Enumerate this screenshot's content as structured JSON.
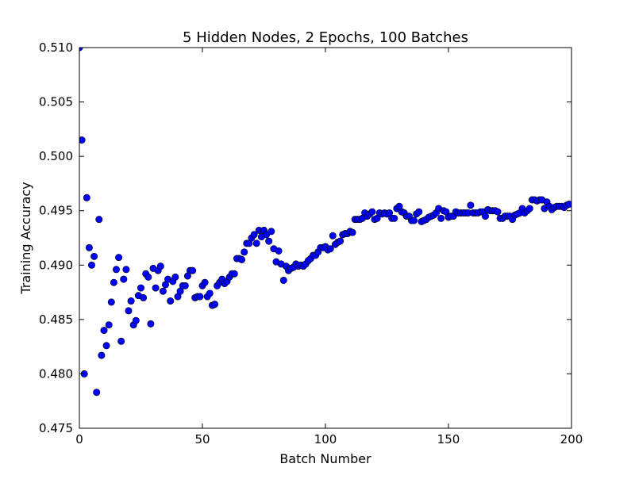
{
  "chart_data": {
    "type": "scatter",
    "title": "5 Hidden Nodes, 2 Epochs, 100 Batches",
    "xlabel": "Batch Number",
    "ylabel": "Training Accuracy",
    "xlim": [
      0,
      200
    ],
    "ylim": [
      0.475,
      0.51
    ],
    "x_ticks": [
      0,
      50,
      100,
      150,
      200
    ],
    "y_ticks": [
      0.475,
      0.48,
      0.485,
      0.49,
      0.495,
      0.5,
      0.505,
      0.51
    ],
    "x_tick_labels": [
      "0",
      "50",
      "100",
      "150",
      "200"
    ],
    "y_tick_labels": [
      "0.475",
      "0.480",
      "0.485",
      "0.490",
      "0.495",
      "0.500",
      "0.505",
      "0.510"
    ],
    "grid": false,
    "marker_color": "#0000ff",
    "series": [
      {
        "x": [
          0,
          1,
          2,
          3,
          4,
          5,
          6,
          7,
          8,
          9,
          10,
          11,
          12,
          13,
          14,
          15,
          16,
          17,
          18,
          19,
          20,
          21,
          22,
          23,
          24,
          25,
          26,
          27,
          28,
          29,
          30,
          31,
          32,
          33,
          34,
          35,
          36,
          37,
          38,
          39,
          40,
          41,
          42,
          43,
          44,
          45,
          46,
          47,
          48,
          49,
          50,
          51,
          52,
          53,
          54,
          55,
          56,
          57,
          58,
          59,
          60,
          61,
          62,
          63,
          64,
          65,
          66,
          67,
          68,
          69,
          70,
          71,
          72,
          73,
          74,
          75,
          76,
          77,
          78,
          79,
          80,
          81,
          82,
          83,
          84,
          85,
          86,
          87,
          88,
          89,
          90,
          91,
          92,
          93,
          94,
          95,
          96,
          97,
          98,
          99,
          100,
          101,
          102,
          103,
          104,
          105,
          106,
          107,
          108,
          109,
          110,
          111,
          112,
          113,
          114,
          115,
          116,
          117,
          118,
          119,
          120,
          121,
          122,
          123,
          124,
          125,
          126,
          127,
          128,
          129,
          130,
          131,
          132,
          133,
          134,
          135,
          136,
          137,
          138,
          139,
          140,
          141,
          142,
          143,
          144,
          145,
          146,
          147,
          148,
          149,
          150,
          151,
          152,
          153,
          154,
          155,
          156,
          157,
          158,
          159,
          160,
          161,
          162,
          163,
          164,
          165,
          166,
          167,
          168,
          169,
          170,
          171,
          172,
          173,
          174,
          175,
          176,
          177,
          178,
          179,
          180,
          181,
          182,
          183,
          184,
          185,
          186,
          187,
          188,
          189,
          190,
          191,
          192,
          193,
          194,
          195,
          196,
          197,
          198,
          199
        ],
        "y": [
          0.51,
          0.5015,
          0.48,
          0.4962,
          0.4916,
          0.49,
          0.4908,
          0.4783,
          0.4942,
          0.4817,
          0.484,
          0.4826,
          0.4845,
          0.4866,
          0.4884,
          0.4896,
          0.4907,
          0.483,
          0.4887,
          0.4896,
          0.4858,
          0.4867,
          0.4845,
          0.4849,
          0.4872,
          0.4879,
          0.487,
          0.4892,
          0.4889,
          0.4846,
          0.4897,
          0.4879,
          0.4895,
          0.4899,
          0.4876,
          0.4882,
          0.4887,
          0.4867,
          0.4885,
          0.4889,
          0.4871,
          0.4876,
          0.4881,
          0.4881,
          0.489,
          0.4895,
          0.4895,
          0.487,
          0.4871,
          0.4871,
          0.4881,
          0.4884,
          0.4871,
          0.4874,
          0.4863,
          0.4864,
          0.4881,
          0.4884,
          0.4887,
          0.4883,
          0.4885,
          0.4889,
          0.4892,
          0.4892,
          0.4906,
          0.4906,
          0.4905,
          0.4912,
          0.492,
          0.492,
          0.4925,
          0.4928,
          0.492,
          0.4932,
          0.4926,
          0.4932,
          0.4928,
          0.4922,
          0.4931,
          0.4915,
          0.4903,
          0.4913,
          0.4901,
          0.4886,
          0.4899,
          0.4895,
          0.4897,
          0.4898,
          0.4901,
          0.4899,
          0.49,
          0.4899,
          0.4901,
          0.4904,
          0.4906,
          0.4909,
          0.4909,
          0.4912,
          0.4916,
          0.4916,
          0.4917,
          0.4914,
          0.4915,
          0.4927,
          0.4919,
          0.4921,
          0.4922,
          0.4928,
          0.4929,
          0.4929,
          0.4931,
          0.493,
          0.4942,
          0.4942,
          0.4942,
          0.4943,
          0.4948,
          0.4945,
          0.4947,
          0.4949,
          0.4942,
          0.4943,
          0.4948,
          0.4947,
          0.4948,
          0.4947,
          0.4948,
          0.4943,
          0.4943,
          0.4952,
          0.4954,
          0.4949,
          0.4948,
          0.4945,
          0.4945,
          0.4941,
          0.4941,
          0.4947,
          0.4949,
          0.494,
          0.4941,
          0.4942,
          0.4944,
          0.4945,
          0.4946,
          0.4948,
          0.4952,
          0.4943,
          0.495,
          0.4949,
          0.4944,
          0.4945,
          0.4945,
          0.4949,
          0.4948,
          0.4948,
          0.4948,
          0.4948,
          0.4948,
          0.4955,
          0.4948,
          0.4948,
          0.4948,
          0.4949,
          0.4949,
          0.4945,
          0.4951,
          0.495,
          0.495,
          0.495,
          0.4949,
          0.4943,
          0.4943,
          0.4945,
          0.4945,
          0.4945,
          0.4942,
          0.4946,
          0.4947,
          0.4948,
          0.4952,
          0.4948,
          0.495,
          0.4952,
          0.496,
          0.496,
          0.4959,
          0.496,
          0.496,
          0.4952,
          0.4958,
          0.4954,
          0.4951,
          0.4953,
          0.4954,
          0.4954,
          0.4954,
          0.4953,
          0.4955,
          0.4956
        ]
      }
    ]
  }
}
